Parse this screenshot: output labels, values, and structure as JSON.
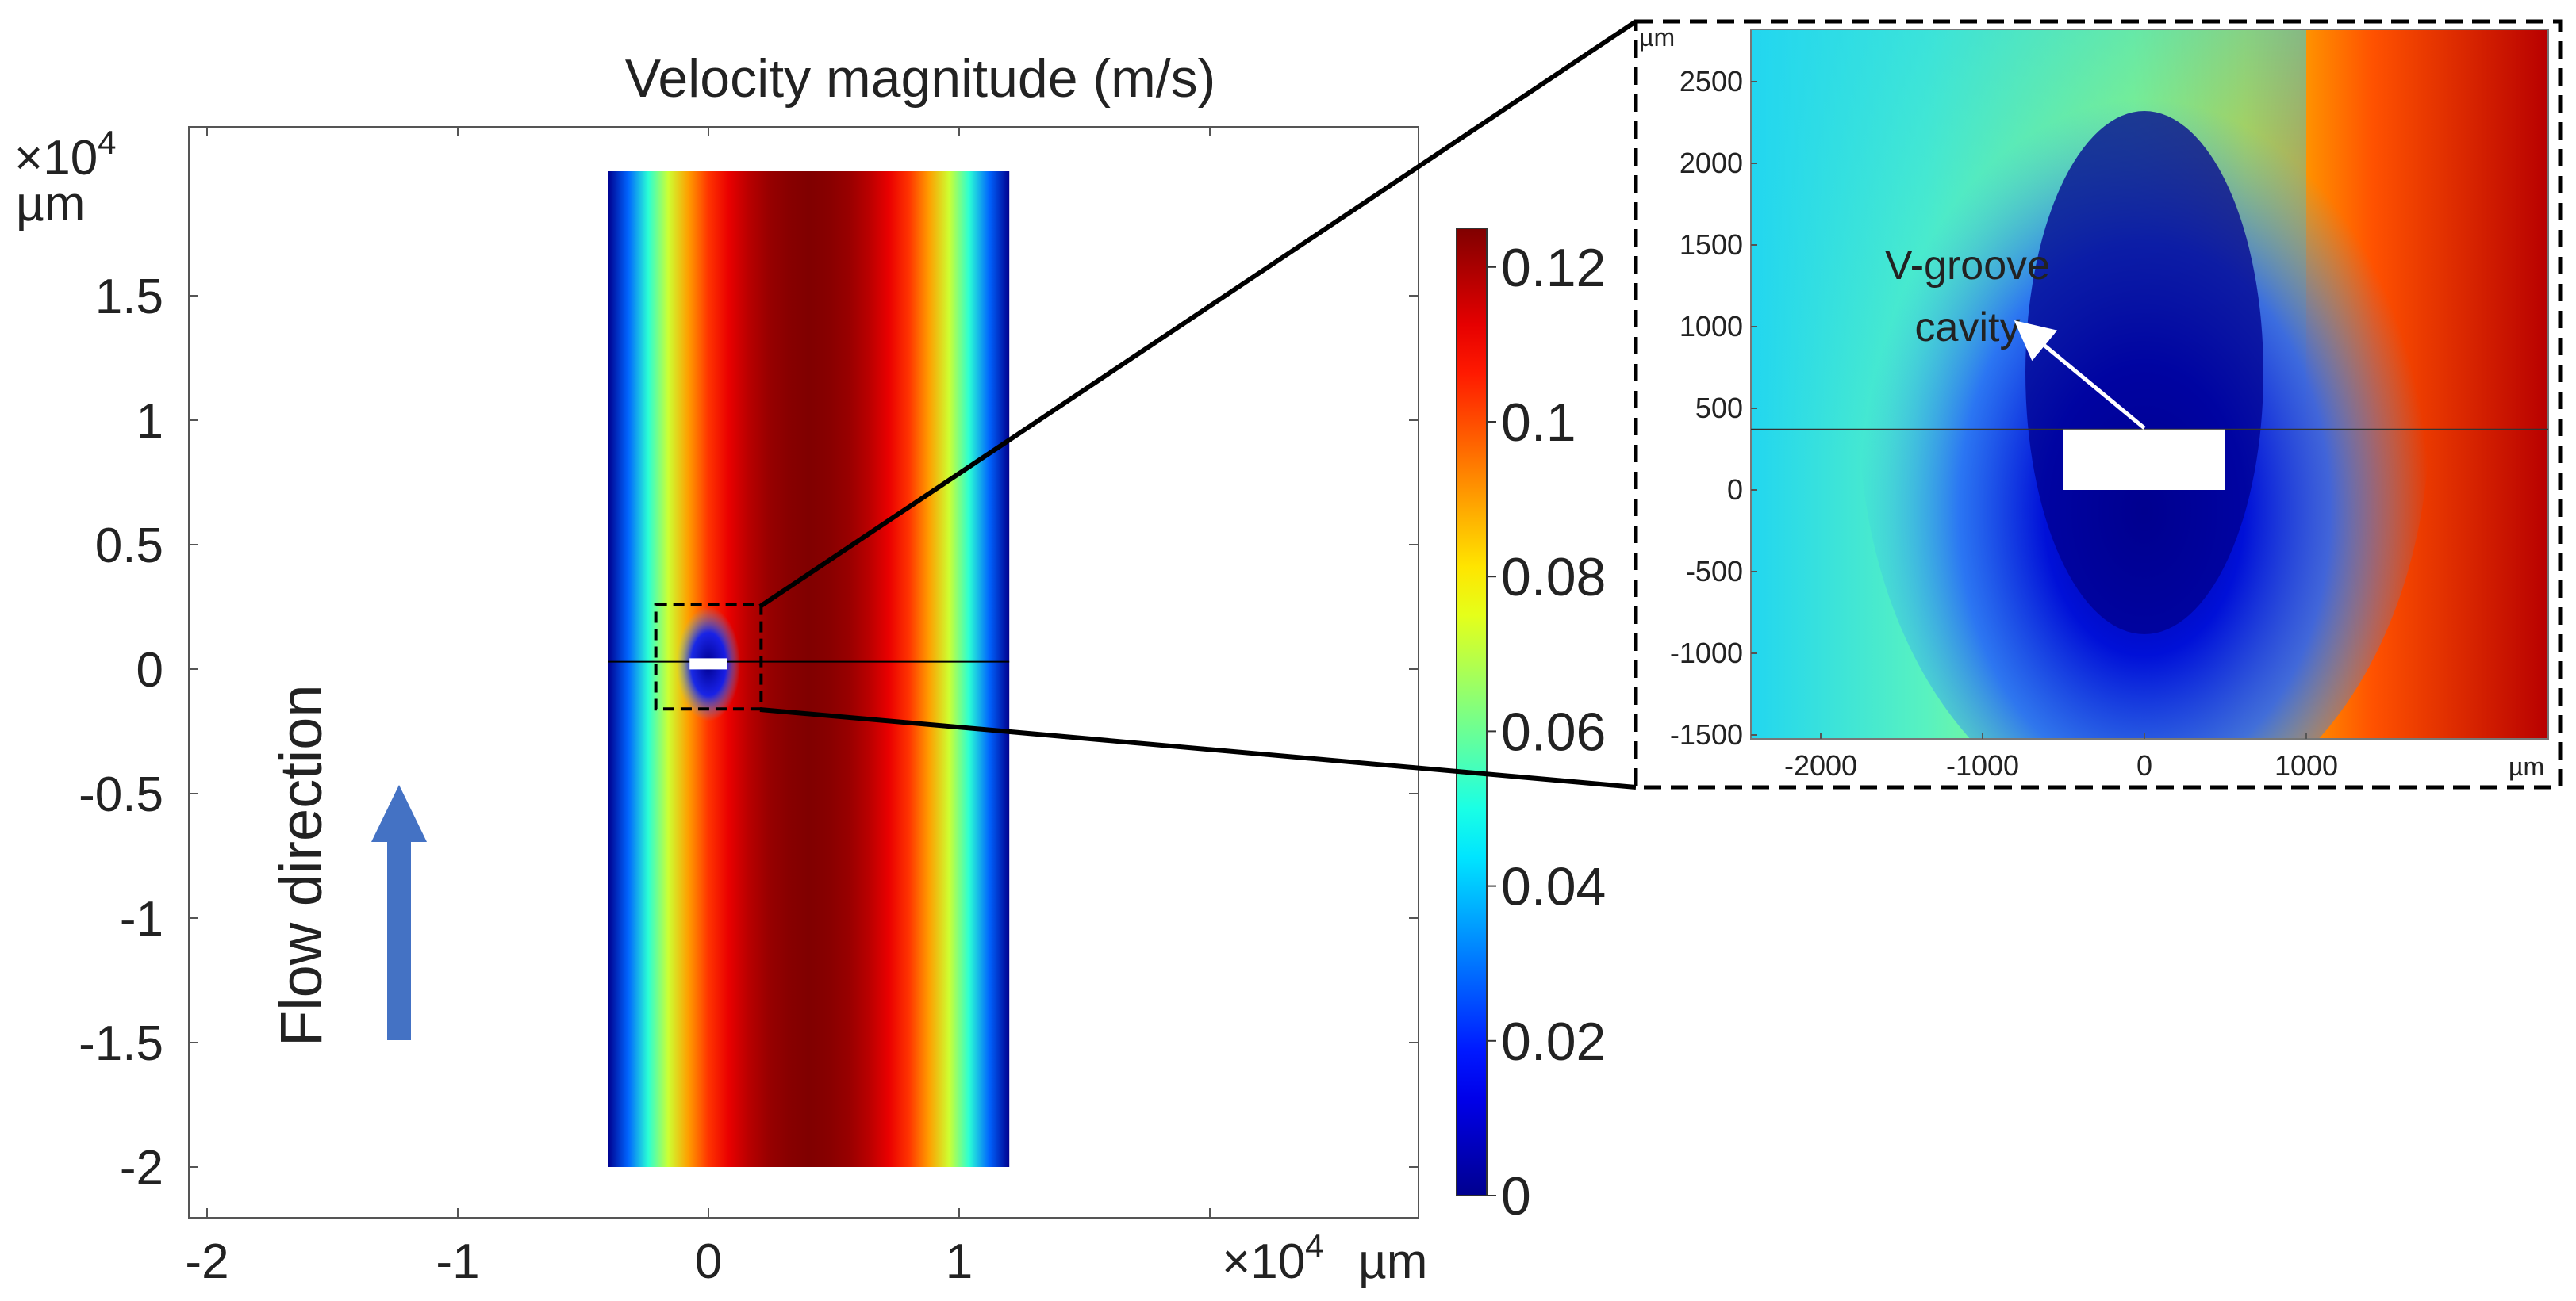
{
  "chart_data": [
    {
      "type": "heatmap",
      "title": "Velocity magnitude (m/s)",
      "xlabel": "µm",
      "x_multiplier": "×10",
      "x_multiplier_exp": "4",
      "ylabel": "µm",
      "y_multiplier": "×10",
      "y_multiplier_exp": "4",
      "xlim": [
        -2.1,
        2.8
      ],
      "ylim": [
        -2.2,
        2.2
      ],
      "x_ticks": [
        -2,
        -1,
        0,
        1
      ],
      "x_tick_labels": [
        "-2",
        "-1",
        "0",
        "1"
      ],
      "y_ticks": [
        -2,
        -1.5,
        -1,
        -0.5,
        0,
        0.5,
        1,
        1.5
      ],
      "y_tick_labels": [
        "-2",
        "-1.5",
        "-1",
        "-0.5",
        "0",
        "0.5",
        "1",
        "1.5"
      ],
      "channel_x_range": [
        -0.4,
        1.2
      ],
      "channel_y_range": [
        -2.0,
        2.0
      ],
      "cavity_x_range": [
        -0.05,
        0.05
      ],
      "cavity_y_range": [
        0.0,
        0.037
      ],
      "zoom_box_x": [
        -0.21,
        0.21
      ],
      "zoom_box_y": [
        -0.16,
        0.26
      ],
      "velocity_profile": {
        "x": [
          -0.4,
          -0.32,
          -0.24,
          -0.16,
          -0.08,
          0.0,
          0.08,
          0.16,
          0.24,
          0.32,
          0.4,
          0.48,
          0.56,
          0.64,
          0.72,
          0.8,
          0.88,
          0.96,
          1.04,
          1.12,
          1.2
        ],
        "v": [
          0.0,
          0.028,
          0.052,
          0.072,
          0.09,
          0.103,
          0.112,
          0.118,
          0.122,
          0.124,
          0.125,
          0.124,
          0.122,
          0.118,
          0.112,
          0.103,
          0.09,
          0.072,
          0.052,
          0.028,
          0.0
        ]
      },
      "annotation": "Flow direction",
      "colorbar": {
        "min": 0,
        "max": 0.125,
        "ticks": [
          0,
          0.02,
          0.04,
          0.06,
          0.08,
          0.1,
          0.12
        ],
        "tick_labels": [
          "0",
          "0.02",
          "0.04",
          "0.06",
          "0.08",
          "0.1",
          "0.12"
        ],
        "colormap": [
          "#00008f",
          "#0000ff",
          "#00ffff",
          "#ffff00",
          "#ff0000",
          "#800000"
        ]
      }
    },
    {
      "type": "heatmap",
      "title": "",
      "xlabel": "µm",
      "ylabel": "µm",
      "xlim": [
        -2400,
        2500
      ],
      "ylim": [
        -1520,
        2800
      ],
      "x_ticks": [
        -2000,
        -1000,
        0,
        1000
      ],
      "x_tick_labels": [
        "-2000",
        "-1000",
        "0",
        "1000"
      ],
      "y_ticks": [
        -1500,
        -1000,
        -500,
        0,
        500,
        1000,
        1500,
        2000,
        2500
      ],
      "y_tick_labels": [
        "-1500",
        "-1000",
        "-500",
        "0",
        "500",
        "1000",
        "1500",
        "2000",
        "2500"
      ],
      "cavity_x_range": [
        -500,
        500
      ],
      "cavity_y_range": [
        0,
        370
      ],
      "wall_line_y": 370,
      "annotation": [
        "V-groove",
        "cavity"
      ]
    }
  ]
}
